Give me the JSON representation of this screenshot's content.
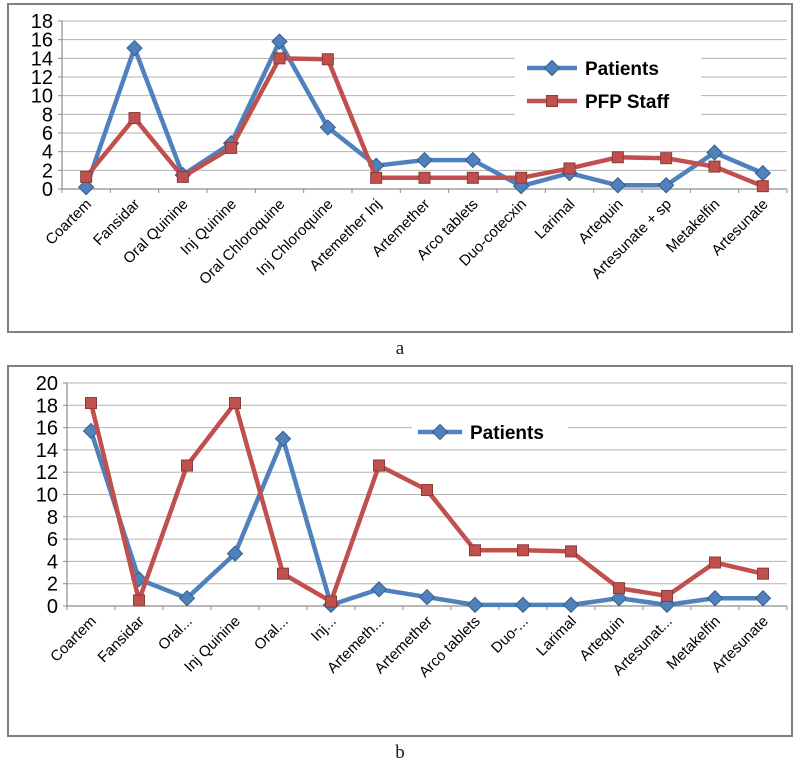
{
  "figure": {
    "caption_a": "a",
    "caption_b": "b"
  },
  "colors": {
    "patients_blue": "#4F81BD",
    "pfp_staff_red": "#C0504D",
    "gridline": "#B3B3B3",
    "axis": "#8C8C8C",
    "panel_border": "#7F7F7F",
    "text": "#000000",
    "legend_background": "#FFFFFF"
  },
  "chart_data": [
    {
      "id": "a",
      "type": "line",
      "title": "",
      "xlabel": "",
      "ylabel": "",
      "categories": [
        "Coartem",
        "Fansidar",
        "Oral Quinine",
        "Inj Quinine",
        "Oral Chloroquine",
        "Inj Chloroquine",
        "Artemether Inj",
        "Artemether",
        "Arco tablets",
        "Duo-cotecxin",
        "Larimal",
        "Artequin",
        "Artesunate + sp",
        "Metakelfin",
        "Artesunate"
      ],
      "ylim": [
        0,
        18
      ],
      "ytick_step": 2,
      "yticks": [
        0,
        2,
        4,
        6,
        8,
        10,
        12,
        14,
        16,
        18
      ],
      "grid": true,
      "legend_position": "upper-right-inside",
      "series": [
        {
          "name": "Patients",
          "marker": "diamond",
          "color": "#4F81BD",
          "in_legend": true,
          "values": [
            0.2,
            15.1,
            1.5,
            4.9,
            15.8,
            6.6,
            2.5,
            3.1,
            3.1,
            0.3,
            1.7,
            0.4,
            0.4,
            3.9,
            1.7
          ]
        },
        {
          "name": "PFP Staff",
          "marker": "square",
          "color": "#C0504D",
          "in_legend": true,
          "values": [
            1.3,
            7.6,
            1.3,
            4.4,
            14.0,
            13.9,
            1.2,
            1.2,
            1.2,
            1.2,
            2.2,
            3.4,
            3.3,
            2.4,
            0.3
          ]
        }
      ]
    },
    {
      "id": "b",
      "type": "line",
      "title": "",
      "xlabel": "",
      "ylabel": "",
      "categories": [
        "Coartem",
        "Fansidar",
        "Oral...",
        "Inj Quinine",
        "Oral...",
        "Inj...",
        "Artemeth...",
        "Artemether",
        "Arco tablets",
        "Duo-...",
        "Larimal",
        "Artequin",
        "Artesunat...",
        "Metakelfin",
        "Artesunate"
      ],
      "ylim": [
        0,
        20
      ],
      "ytick_step": 2,
      "yticks": [
        0,
        2,
        4,
        6,
        8,
        10,
        12,
        14,
        16,
        18,
        20
      ],
      "grid": true,
      "legend_position": "upper-center-inside",
      "series": [
        {
          "name": "Patients",
          "marker": "diamond",
          "color": "#4F81BD",
          "in_legend": true,
          "values": [
            15.7,
            2.4,
            0.7,
            4.7,
            15.0,
            0.1,
            1.5,
            0.8,
            0.1,
            0.1,
            0.1,
            0.7,
            0.1,
            0.7,
            0.7
          ]
        },
        {
          "name": "",
          "marker": "square",
          "color": "#C0504D",
          "in_legend": false,
          "values": [
            18.2,
            0.5,
            12.6,
            18.2,
            2.9,
            0.4,
            12.6,
            10.4,
            5.0,
            5.0,
            4.9,
            1.6,
            0.9,
            3.9,
            2.9
          ]
        }
      ]
    }
  ]
}
